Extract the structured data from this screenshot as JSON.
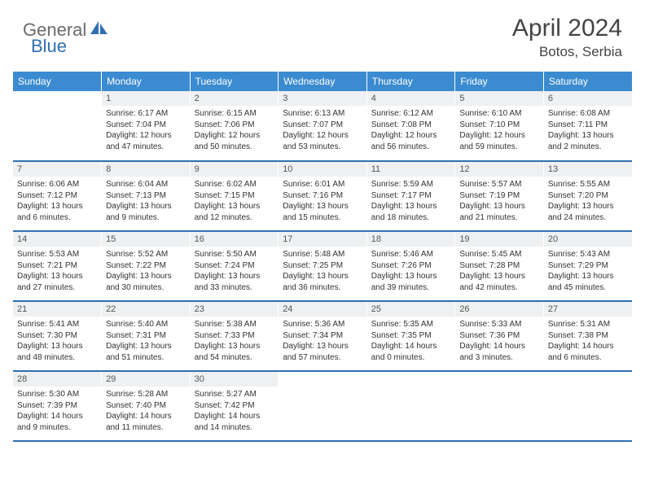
{
  "brand": {
    "part1": "General",
    "part2": "Blue"
  },
  "title": "April 2024",
  "location": "Botos, Serbia",
  "colors": {
    "header_bg": "#3b8bd0",
    "header_text": "#ffffff",
    "daynum_bg": "#eef0f1",
    "daynum_text": "#555555",
    "border": "#2f6fb0",
    "body_text": "#333333",
    "brand_gray": "#6b6b6b",
    "brand_blue": "#2f6fb0"
  },
  "weekdays": [
    "Sunday",
    "Monday",
    "Tuesday",
    "Wednesday",
    "Thursday",
    "Friday",
    "Saturday"
  ],
  "weeks": [
    [
      null,
      {
        "n": "1",
        "sr": "6:17 AM",
        "ss": "7:04 PM",
        "dl": "12 hours and 47 minutes."
      },
      {
        "n": "2",
        "sr": "6:15 AM",
        "ss": "7:06 PM",
        "dl": "12 hours and 50 minutes."
      },
      {
        "n": "3",
        "sr": "6:13 AM",
        "ss": "7:07 PM",
        "dl": "12 hours and 53 minutes."
      },
      {
        "n": "4",
        "sr": "6:12 AM",
        "ss": "7:08 PM",
        "dl": "12 hours and 56 minutes."
      },
      {
        "n": "5",
        "sr": "6:10 AM",
        "ss": "7:10 PM",
        "dl": "12 hours and 59 minutes."
      },
      {
        "n": "6",
        "sr": "6:08 AM",
        "ss": "7:11 PM",
        "dl": "13 hours and 2 minutes."
      }
    ],
    [
      {
        "n": "7",
        "sr": "6:06 AM",
        "ss": "7:12 PM",
        "dl": "13 hours and 6 minutes."
      },
      {
        "n": "8",
        "sr": "6:04 AM",
        "ss": "7:13 PM",
        "dl": "13 hours and 9 minutes."
      },
      {
        "n": "9",
        "sr": "6:02 AM",
        "ss": "7:15 PM",
        "dl": "13 hours and 12 minutes."
      },
      {
        "n": "10",
        "sr": "6:01 AM",
        "ss": "7:16 PM",
        "dl": "13 hours and 15 minutes."
      },
      {
        "n": "11",
        "sr": "5:59 AM",
        "ss": "7:17 PM",
        "dl": "13 hours and 18 minutes."
      },
      {
        "n": "12",
        "sr": "5:57 AM",
        "ss": "7:19 PM",
        "dl": "13 hours and 21 minutes."
      },
      {
        "n": "13",
        "sr": "5:55 AM",
        "ss": "7:20 PM",
        "dl": "13 hours and 24 minutes."
      }
    ],
    [
      {
        "n": "14",
        "sr": "5:53 AM",
        "ss": "7:21 PM",
        "dl": "13 hours and 27 minutes."
      },
      {
        "n": "15",
        "sr": "5:52 AM",
        "ss": "7:22 PM",
        "dl": "13 hours and 30 minutes."
      },
      {
        "n": "16",
        "sr": "5:50 AM",
        "ss": "7:24 PM",
        "dl": "13 hours and 33 minutes."
      },
      {
        "n": "17",
        "sr": "5:48 AM",
        "ss": "7:25 PM",
        "dl": "13 hours and 36 minutes."
      },
      {
        "n": "18",
        "sr": "5:46 AM",
        "ss": "7:26 PM",
        "dl": "13 hours and 39 minutes."
      },
      {
        "n": "19",
        "sr": "5:45 AM",
        "ss": "7:28 PM",
        "dl": "13 hours and 42 minutes."
      },
      {
        "n": "20",
        "sr": "5:43 AM",
        "ss": "7:29 PM",
        "dl": "13 hours and 45 minutes."
      }
    ],
    [
      {
        "n": "21",
        "sr": "5:41 AM",
        "ss": "7:30 PM",
        "dl": "13 hours and 48 minutes."
      },
      {
        "n": "22",
        "sr": "5:40 AM",
        "ss": "7:31 PM",
        "dl": "13 hours and 51 minutes."
      },
      {
        "n": "23",
        "sr": "5:38 AM",
        "ss": "7:33 PM",
        "dl": "13 hours and 54 minutes."
      },
      {
        "n": "24",
        "sr": "5:36 AM",
        "ss": "7:34 PM",
        "dl": "13 hours and 57 minutes."
      },
      {
        "n": "25",
        "sr": "5:35 AM",
        "ss": "7:35 PM",
        "dl": "14 hours and 0 minutes."
      },
      {
        "n": "26",
        "sr": "5:33 AM",
        "ss": "7:36 PM",
        "dl": "14 hours and 3 minutes."
      },
      {
        "n": "27",
        "sr": "5:31 AM",
        "ss": "7:38 PM",
        "dl": "14 hours and 6 minutes."
      }
    ],
    [
      {
        "n": "28",
        "sr": "5:30 AM",
        "ss": "7:39 PM",
        "dl": "14 hours and 9 minutes."
      },
      {
        "n": "29",
        "sr": "5:28 AM",
        "ss": "7:40 PM",
        "dl": "14 hours and 11 minutes."
      },
      {
        "n": "30",
        "sr": "5:27 AM",
        "ss": "7:42 PM",
        "dl": "14 hours and 14 minutes."
      },
      null,
      null,
      null,
      null
    ]
  ],
  "labels": {
    "sunrise": "Sunrise:",
    "sunset": "Sunset:",
    "daylight": "Daylight:"
  }
}
